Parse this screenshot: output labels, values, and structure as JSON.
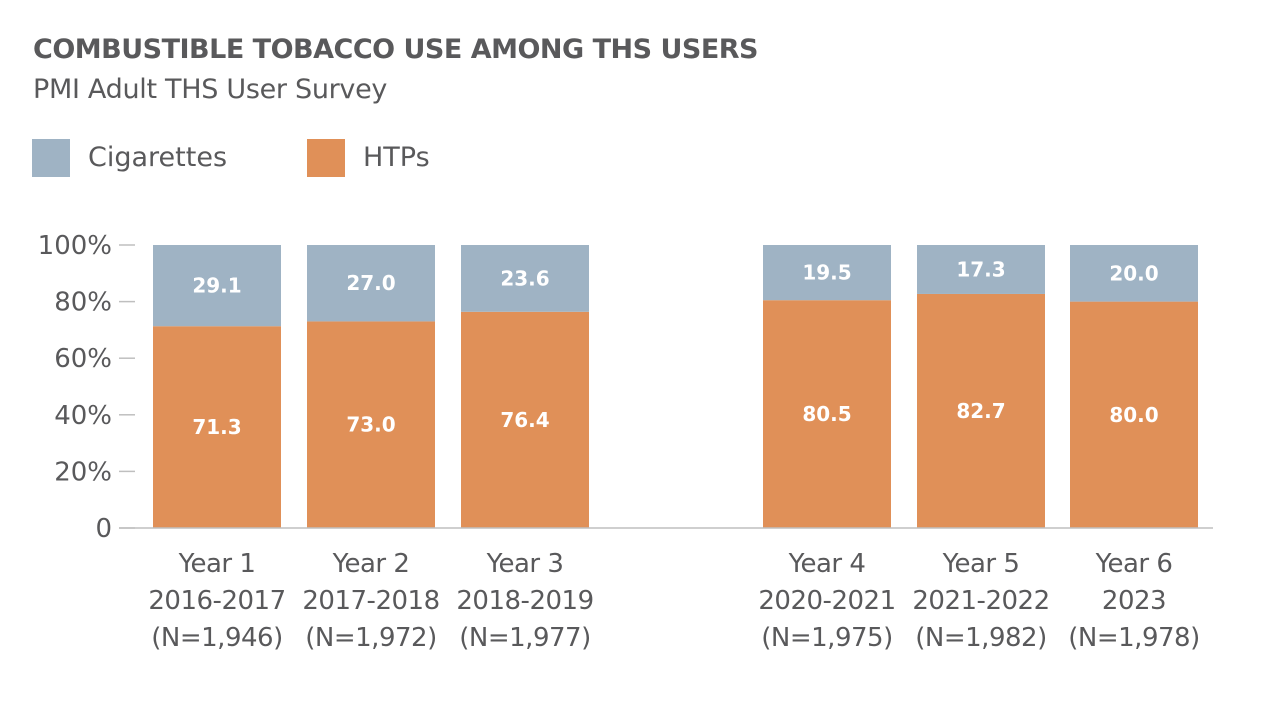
{
  "chart_data": {
    "type": "bar",
    "stacked": true,
    "percent": true,
    "title": "COMBUSTIBLE TOBACCO USE AMONG THS USERS",
    "subtitle": "PMI Adult THS User Survey",
    "categories": [
      {
        "lines": [
          "Year 1",
          "2016-2017",
          "(N=1,946)"
        ]
      },
      {
        "lines": [
          "Year 2",
          "2017-2018",
          "(N=1,972)"
        ]
      },
      {
        "lines": [
          "Year 3",
          "2018-2019",
          "(N=1,977)"
        ]
      },
      {
        "lines": [
          "Year 4",
          "2020-2021",
          "(N=1,975)"
        ]
      },
      {
        "lines": [
          "Year 5",
          "2021-2022",
          "(N=1,982)"
        ]
      },
      {
        "lines": [
          "Year 6",
          "2023",
          "(N=1,978)"
        ]
      }
    ],
    "series": [
      {
        "name": "HTPs",
        "color": "#e09058",
        "values": [
          71.3,
          73.0,
          76.4,
          80.5,
          82.7,
          80.0
        ],
        "labels": [
          "71.3",
          "73.0",
          "76.4",
          "80.5",
          "82.7",
          "80.0"
        ]
      },
      {
        "name": "Cigarettes",
        "color": "#9fb3c4",
        "values": [
          29.1,
          27.0,
          23.6,
          19.5,
          17.3,
          20.0
        ],
        "labels": [
          "29.1",
          "27.0",
          "23.6",
          "19.5",
          "17.3",
          "20.0"
        ]
      }
    ],
    "legend": [
      {
        "name": "Cigarettes",
        "color": "#9fb3c4"
      },
      {
        "name": "HTPs",
        "color": "#e09058"
      }
    ],
    "yticks": [
      {
        "value": 0,
        "label": "0"
      },
      {
        "value": 20,
        "label": "20%"
      },
      {
        "value": 40,
        "label": "40%"
      },
      {
        "value": 60,
        "label": "60%"
      },
      {
        "value": 80,
        "label": "80%"
      },
      {
        "value": 100,
        "label": "100%"
      }
    ],
    "ylim": [
      0,
      100
    ],
    "grid": false,
    "legend_position": "top-left"
  }
}
